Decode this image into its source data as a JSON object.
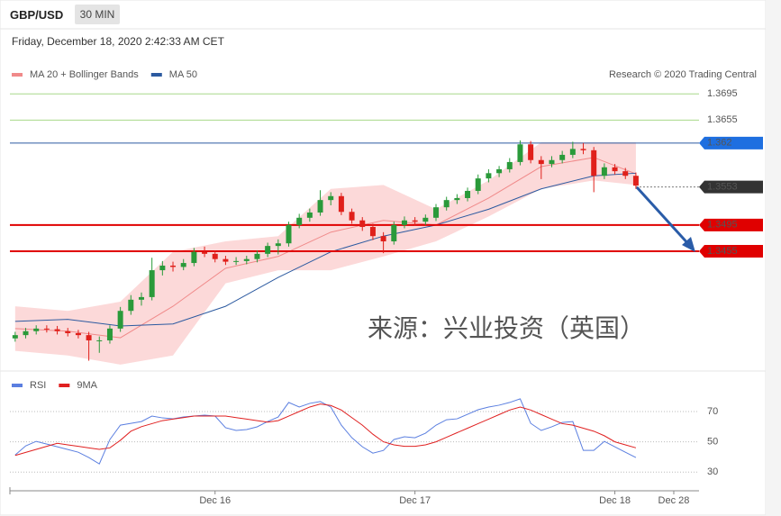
{
  "header": {
    "symbol": "GBP/USD",
    "interval": "30 MIN",
    "date": "Friday, December 18, 2020 2:42:33 AM CET"
  },
  "chart_data": [
    {
      "type": "candlestick",
      "attribution": "Research © 2020 Trading Central",
      "annotation": "来源：兴业投资（英国）",
      "ylim": [
        1.3275,
        1.3742
      ],
      "xlim": [
        -0.5,
        65
      ],
      "up_color": "#2a9a3a",
      "down_color": "#e0201b",
      "ohlc": [
        [
          1.3322,
          1.3332,
          1.3317,
          1.3327
        ],
        [
          1.3327,
          1.3338,
          1.3322,
          1.3333
        ],
        [
          1.3333,
          1.3342,
          1.3328,
          1.3337
        ],
        [
          1.3337,
          1.3342,
          1.3331,
          1.3336
        ],
        [
          1.3336,
          1.3341,
          1.3328,
          1.3333
        ],
        [
          1.3333,
          1.3338,
          1.3325,
          1.333
        ],
        [
          1.333,
          1.3335,
          1.3322,
          1.3327
        ],
        [
          1.3327,
          1.3332,
          1.3288,
          1.3319
        ],
        [
          1.3319,
          1.3325,
          1.33,
          1.3319
        ],
        [
          1.3319,
          1.3342,
          1.3314,
          1.3337
        ],
        [
          1.3337,
          1.337,
          1.3332,
          1.3364
        ],
        [
          1.3364,
          1.3388,
          1.3358,
          1.3381
        ],
        [
          1.3381,
          1.3392,
          1.3372,
          1.3385
        ],
        [
          1.3385,
          1.3445,
          1.338,
          1.3426
        ],
        [
          1.3426,
          1.344,
          1.3418,
          1.3433
        ],
        [
          1.3433,
          1.3439,
          1.3424,
          1.3431
        ],
        [
          1.3431,
          1.3443,
          1.3426,
          1.3437
        ],
        [
          1.3437,
          1.346,
          1.3432,
          1.3454
        ],
        [
          1.3454,
          1.3462,
          1.3446,
          1.3451
        ],
        [
          1.3451,
          1.3456,
          1.3438,
          1.3443
        ],
        [
          1.3443,
          1.3448,
          1.3434,
          1.3439
        ],
        [
          1.3439,
          1.3446,
          1.3434,
          1.344
        ],
        [
          1.344,
          1.3448,
          1.3435,
          1.3443
        ],
        [
          1.3443,
          1.3456,
          1.3438,
          1.3451
        ],
        [
          1.3451,
          1.3468,
          1.3446,
          1.3463
        ],
        [
          1.3463,
          1.3473,
          1.345,
          1.3467
        ],
        [
          1.3467,
          1.35,
          1.3462,
          1.3495
        ],
        [
          1.3495,
          1.3512,
          1.349,
          1.3506
        ],
        [
          1.3506,
          1.352,
          1.35,
          1.3514
        ],
        [
          1.3514,
          1.3548,
          1.3509,
          1.3533
        ],
        [
          1.3533,
          1.3545,
          1.3525,
          1.3539
        ],
        [
          1.3539,
          1.3544,
          1.351,
          1.3515
        ],
        [
          1.3515,
          1.352,
          1.3497,
          1.3502
        ],
        [
          1.3502,
          1.3507,
          1.3486,
          1.3492
        ],
        [
          1.3492,
          1.3497,
          1.3472,
          1.3478
        ],
        [
          1.3478,
          1.3484,
          1.3452,
          1.347
        ],
        [
          1.347,
          1.35,
          1.3465,
          1.3495
        ],
        [
          1.3495,
          1.3508,
          1.349,
          1.3502
        ],
        [
          1.3502,
          1.3507,
          1.3494,
          1.35
        ],
        [
          1.35,
          1.3511,
          1.3495,
          1.3506
        ],
        [
          1.3506,
          1.3527,
          1.3501,
          1.3522
        ],
        [
          1.3522,
          1.3538,
          1.3517,
          1.3533
        ],
        [
          1.3533,
          1.3542,
          1.3527,
          1.3536
        ],
        [
          1.3536,
          1.3552,
          1.3531,
          1.3547
        ],
        [
          1.3547,
          1.3572,
          1.3542,
          1.3566
        ],
        [
          1.3566,
          1.358,
          1.356,
          1.3574
        ],
        [
          1.3574,
          1.3585,
          1.3568,
          1.358
        ],
        [
          1.358,
          1.3597,
          1.3575,
          1.3591
        ],
        [
          1.3591,
          1.3624,
          1.3586,
          1.3618
        ],
        [
          1.3618,
          1.3623,
          1.3589,
          1.3594
        ],
        [
          1.3594,
          1.36,
          1.3565,
          1.3588
        ],
        [
          1.3588,
          1.36,
          1.3583,
          1.3594
        ],
        [
          1.3594,
          1.3608,
          1.3589,
          1.3602
        ],
        [
          1.3602,
          1.3622,
          1.3597,
          1.3611
        ],
        [
          1.3611,
          1.362,
          1.3603,
          1.3609
        ],
        [
          1.3609,
          1.3614,
          1.3545,
          1.357
        ],
        [
          1.357,
          1.3589,
          1.3565,
          1.3583
        ],
        [
          1.3583,
          1.3588,
          1.3572,
          1.3577
        ],
        [
          1.3577,
          1.3582,
          1.3565,
          1.357
        ],
        [
          1.357,
          1.3575,
          1.355,
          1.3555
        ]
      ],
      "x": [
        0,
        5,
        10,
        15,
        20,
        25,
        30,
        35,
        40,
        45,
        50,
        55,
        59
      ],
      "series": [
        {
          "name": "MA 20 + Bollinger Bands",
          "color": "#f08a8a",
          "band_color": "#fcd9d9",
          "values": [
            1.3337,
            1.3333,
            1.3323,
            1.3371,
            1.3429,
            1.3447,
            1.3484,
            1.3502,
            1.3495,
            1.3536,
            1.3584,
            1.3598,
            1.3573
          ],
          "upper": [
            1.3371,
            1.3364,
            1.3378,
            1.3454,
            1.347,
            1.3478,
            1.355,
            1.3556,
            1.3519,
            1.3563,
            1.3621,
            1.3621,
            1.3621
          ],
          "lower": [
            1.3303,
            1.3296,
            1.3282,
            1.3296,
            1.3406,
            1.3426,
            1.3426,
            1.3447,
            1.347,
            1.3508,
            1.355,
            1.3563,
            1.3556
          ]
        },
        {
          "name": "MA 50",
          "color": "#2c5aa0",
          "values": [
            1.3348,
            1.3351,
            1.3341,
            1.3344,
            1.3371,
            1.3415,
            1.3454,
            1.3478,
            1.3495,
            1.3519,
            1.355,
            1.357,
            1.3574
          ]
        }
      ],
      "levels": [
        {
          "value": 1.3695,
          "color": "#a8d88a",
          "text_color": "#5aa82a",
          "boxed": false,
          "style": "solid"
        },
        {
          "value": 1.3655,
          "color": "#a8d88a",
          "text_color": "#5aa82a",
          "boxed": false,
          "style": "solid"
        },
        {
          "value": 1.362,
          "color": "#2c5aa0",
          "text_color": "#ffffff",
          "box_color": "#1e6fe0",
          "boxed": true,
          "style": "solid"
        },
        {
          "value": 1.3553,
          "color": "#777777",
          "text_color": "#ffffff",
          "box_color": "#333333",
          "boxed": true,
          "style": "dotted"
        },
        {
          "value": 1.3495,
          "color": "#e00000",
          "text_color": "#ffffff",
          "box_color": "#e00000",
          "boxed": true,
          "style": "solid"
        },
        {
          "value": 1.3455,
          "color": "#e00000",
          "text_color": "#ffffff",
          "box_color": "#e00000",
          "boxed": true,
          "style": "solid"
        }
      ]
    },
    {
      "type": "line",
      "ylim": [
        20,
        95
      ],
      "xlim": [
        -0.5,
        65
      ],
      "yticks": [
        70,
        50,
        30
      ],
      "grid": true,
      "xticks": [
        {
          "value": 19,
          "label": "Dec 16"
        },
        {
          "value": 38,
          "label": "Dec 17"
        },
        {
          "value": 57,
          "label": "Dec 18"
        },
        {
          "value": 62.6,
          "label": "Dec 28"
        }
      ],
      "series": [
        {
          "name": "RSI",
          "color": "#5b7fe0",
          "values": [
            41.3,
            47.3,
            50.3,
            48.5,
            46.7,
            44.9,
            43.1,
            39.6,
            35.4,
            51.5,
            61.0,
            62.2,
            63.4,
            67.0,
            65.8,
            65.2,
            66.4,
            67.0,
            67.6,
            67.0,
            59.3,
            57.5,
            58.1,
            59.9,
            63.4,
            66.4,
            76.0,
            73.0,
            75.4,
            76.6,
            73.0,
            61.0,
            52.7,
            46.7,
            42.5,
            44.3,
            51.5,
            53.3,
            52.7,
            55.7,
            61.0,
            64.6,
            65.2,
            68.2,
            71.2,
            73.0,
            74.2,
            76.0,
            78.4,
            62.2,
            57.5,
            59.9,
            62.8,
            63.4,
            44.3,
            44.3,
            50.3,
            46.7,
            43.1,
            39.6
          ]
        },
        {
          "name": "9MA",
          "color": "#e02020",
          "values": [
            41,
            43,
            45,
            47,
            49,
            48,
            47,
            46,
            45,
            46,
            51,
            57,
            60,
            62,
            64,
            65,
            66,
            67,
            67,
            67,
            67,
            66,
            65,
            64,
            63,
            64,
            67,
            70,
            73,
            75,
            74,
            71,
            66,
            61,
            55,
            50,
            48,
            47,
            47,
            48,
            50,
            53,
            56,
            59,
            62,
            65,
            68,
            71,
            73,
            71,
            68,
            65,
            62,
            61,
            59,
            57,
            54,
            50,
            48,
            46
          ]
        }
      ]
    }
  ]
}
